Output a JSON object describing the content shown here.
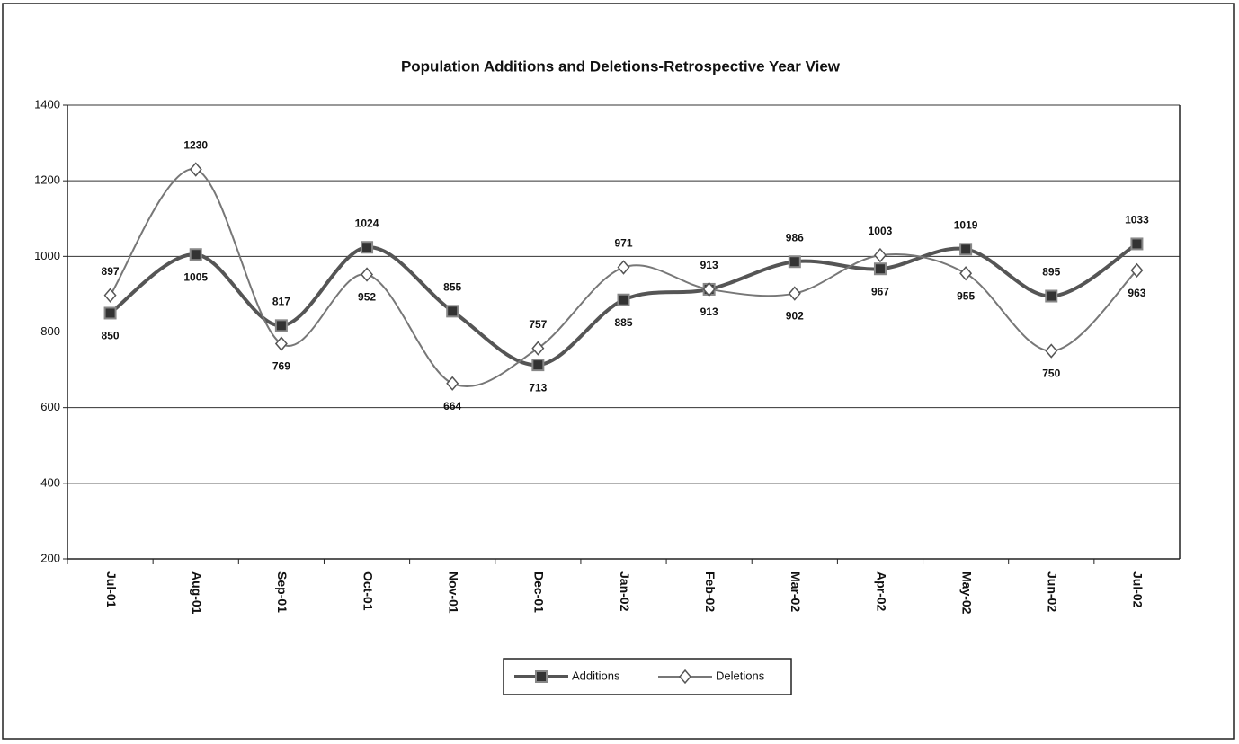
{
  "chart_data": {
    "type": "line",
    "title": "Population Additions and Deletions-Retrospective Year View",
    "categories": [
      "Jul-01",
      "Aug-01",
      "Sep-01",
      "Oct-01",
      "Nov-01",
      "Dec-01",
      "Jan-02",
      "Feb-02",
      "Mar-02",
      "Apr-02",
      "May-02",
      "Jun-02",
      "Jul-02"
    ],
    "series": [
      {
        "name": "Additions",
        "color": "#555555",
        "marker": "square",
        "values": [
          850,
          1005,
          817,
          1024,
          855,
          713,
          885,
          913,
          986,
          967,
          1019,
          895,
          1033
        ]
      },
      {
        "name": "Deletions",
        "color": "#777777",
        "marker": "diamond",
        "values": [
          897,
          1230,
          769,
          952,
          664,
          757,
          971,
          913,
          902,
          1003,
          955,
          750,
          963
        ]
      }
    ],
    "ylim": [
      200,
      1400
    ],
    "yticks": [
      200,
      400,
      600,
      800,
      1000,
      1200,
      1400
    ],
    "grid": true,
    "legend": "bottom"
  }
}
